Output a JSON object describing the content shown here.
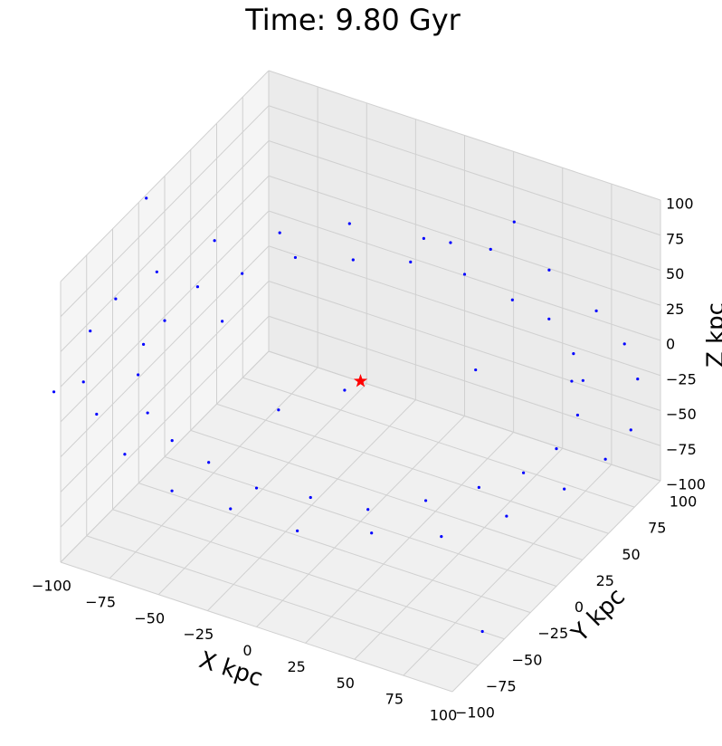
{
  "chart_data": {
    "type": "scatter3d",
    "title": "Time: 9.80 Gyr",
    "xlabel": "X kpc",
    "ylabel": "Y kpc",
    "zlabel": "Z kpc",
    "xlim": [
      -100,
      100
    ],
    "ylim": [
      -100,
      100
    ],
    "zlim": [
      -100,
      100
    ],
    "xticks": [
      {
        "value": -100,
        "label": "−100"
      },
      {
        "value": -75,
        "label": "−75"
      },
      {
        "value": -50,
        "label": "−50"
      },
      {
        "value": -25,
        "label": "−25"
      },
      0,
      25,
      50,
      75,
      100
    ],
    "yticks": [
      {
        "value": -100,
        "label": "−100"
      },
      {
        "value": -75,
        "label": "−75"
      },
      {
        "value": -50,
        "label": "−50"
      },
      {
        "value": -25,
        "label": "−25"
      },
      0,
      25,
      50,
      75,
      100
    ],
    "zticks": [
      {
        "value": -100,
        "label": "−100"
      },
      {
        "value": -75,
        "label": "−75"
      },
      {
        "value": -50,
        "label": "−50"
      },
      {
        "value": -25,
        "label": "−25"
      },
      0,
      25,
      50,
      75,
      100
    ],
    "grid": true,
    "series": [
      {
        "color": "#0000ff",
        "marker": "dot",
        "x": [
          125,
          121,
          108,
          88,
          63,
          32,
          0,
          -32,
          -63,
          -88,
          -108,
          -121,
          -125,
          -121,
          -108,
          -88,
          -63,
          -32,
          0,
          32,
          63,
          88,
          108,
          121,
          100,
          97,
          87,
          71,
          50,
          26,
          0,
          -26,
          -50,
          -71,
          -87,
          -97,
          -100,
          -97,
          -87,
          -71,
          -50,
          -26,
          0,
          26,
          50,
          71,
          87,
          97,
          -120,
          80,
          -40,
          20,
          -60,
          30,
          110,
          -130,
          -10,
          60
        ],
        "y": [
          0,
          32,
          63,
          88,
          108,
          121,
          125,
          121,
          108,
          88,
          63,
          32,
          0,
          -32,
          -63,
          -88,
          -108,
          -121,
          -125,
          -121,
          -108,
          -88,
          -63,
          -32,
          0,
          26,
          50,
          71,
          87,
          97,
          100,
          97,
          87,
          71,
          50,
          26,
          0,
          -26,
          -50,
          -71,
          -87,
          -97,
          -100,
          -97,
          -87,
          -71,
          -50,
          -26,
          20,
          -40,
          60,
          110,
          -20,
          30,
          -90,
          -50,
          -60,
          90
        ],
        "z": [
          2,
          -3,
          4,
          1,
          -2,
          3,
          0,
          -4,
          2,
          -1,
          3,
          -2,
          1,
          4,
          -3,
          2,
          0,
          -2,
          3,
          -1,
          2,
          -4,
          1,
          3,
          -2,
          1,
          3,
          -1,
          2,
          -3,
          1,
          0,
          -2,
          2,
          -1,
          3,
          -3,
          1,
          2,
          -2,
          0,
          3,
          -1,
          2,
          -3,
          1,
          2,
          -1,
          60,
          75,
          -70,
          40,
          30,
          90,
          -60,
          -30,
          20,
          -40
        ]
      },
      {
        "color": "#ff0000",
        "marker": "star",
        "x": [
          0
        ],
        "y": [
          0
        ],
        "z": [
          0
        ]
      }
    ]
  }
}
